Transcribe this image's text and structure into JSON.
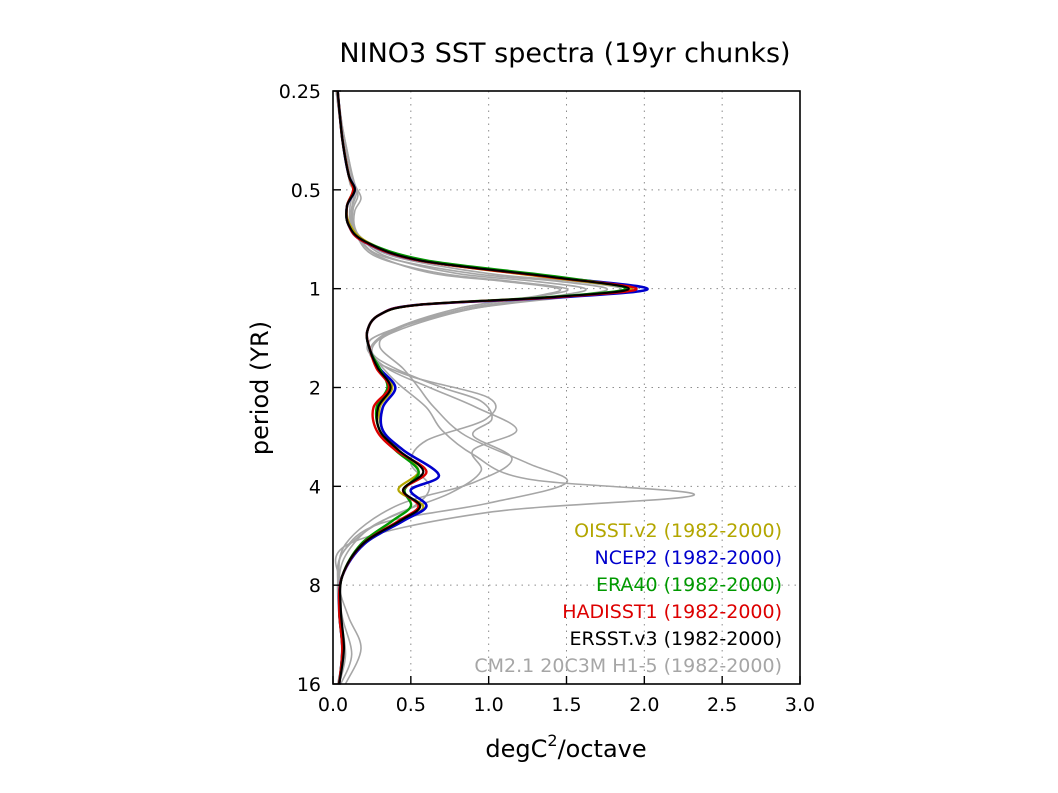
{
  "chart_data": {
    "type": "line",
    "title": "NINO3 SST spectra (19yr chunks)",
    "xlabel": {
      "base": "degC",
      "sup": "2",
      "rest": "/octave"
    },
    "ylabel": "period (YR)",
    "xlim": [
      0.0,
      3.0
    ],
    "ylim": [
      0.25,
      16
    ],
    "y_scale": "log2",
    "y_reversed": true,
    "grid": true,
    "legend_placement": "bottom-right",
    "x_ticks": [
      "0.0",
      "0.5",
      "1.0",
      "1.5",
      "2.0",
      "2.5",
      "3.0"
    ],
    "x_tick_values": [
      0.0,
      0.5,
      1.0,
      1.5,
      2.0,
      2.5,
      3.0
    ],
    "y_ticks": [
      "0.25",
      "0.5",
      "1",
      "2",
      "4",
      "8",
      "16"
    ],
    "y_tick_values": [
      0.25,
      0.5,
      1,
      2,
      4,
      8,
      16
    ],
    "series": [
      {
        "name": "CM2.1 20C3M H1-5 (1982-2000)",
        "color": "#a6a6a6",
        "width": 1.6,
        "x": [
          0.03,
          0.05,
          0.08,
          0.11,
          0.14,
          0.12,
          0.12,
          0.16,
          0.3,
          0.65,
          1.1,
          1.45,
          1.32,
          0.8,
          0.38,
          0.25,
          0.4,
          0.7,
          0.95,
          1.02,
          0.9,
          1.15,
          0.9,
          0.4,
          0.08,
          0.04,
          0.06,
          0.12,
          0.05
        ],
        "y": [
          0.25,
          0.32,
          0.4,
          0.48,
          0.5,
          0.57,
          0.63,
          0.7,
          0.8,
          0.9,
          0.95,
          1.0,
          1.05,
          1.15,
          1.35,
          1.55,
          1.75,
          2.0,
          2.2,
          2.5,
          2.8,
          3.3,
          3.9,
          4.6,
          6.0,
          8.0,
          10.0,
          13.0,
          16.0
        ]
      },
      {
        "name": "CM2.1 20C3M H1-5 (1982-2000)",
        "color": "#a6a6a6",
        "width": 1.6,
        "x": [
          0.03,
          0.06,
          0.1,
          0.13,
          0.16,
          0.13,
          0.13,
          0.18,
          0.35,
          0.8,
          1.3,
          1.62,
          1.45,
          0.85,
          0.35,
          0.22,
          0.35,
          0.62,
          0.92,
          1.18,
          0.9,
          0.95,
          0.75,
          0.35,
          0.07,
          0.03,
          0.05,
          0.08,
          0.04
        ],
        "y": [
          0.25,
          0.32,
          0.4,
          0.48,
          0.52,
          0.57,
          0.64,
          0.7,
          0.8,
          0.9,
          0.95,
          1.0,
          1.05,
          1.15,
          1.35,
          1.5,
          1.75,
          2.0,
          2.3,
          2.7,
          3.1,
          3.6,
          4.2,
          5.0,
          6.3,
          8.0,
          10.0,
          13.0,
          16.0
        ]
      },
      {
        "name": "CM2.1 20C3M H1-5 (1982-2000)",
        "color": "#a6a6a6",
        "width": 1.6,
        "x": [
          0.02,
          0.05,
          0.09,
          0.12,
          0.15,
          0.12,
          0.12,
          0.17,
          0.33,
          0.9,
          1.45,
          1.76,
          1.55,
          0.9,
          0.4,
          0.3,
          0.45,
          0.55,
          0.65,
          0.85,
          1.25,
          1.5,
          1.0,
          0.3,
          0.06,
          0.03,
          0.04,
          0.06,
          0.03
        ],
        "y": [
          0.25,
          0.32,
          0.4,
          0.48,
          0.51,
          0.57,
          0.63,
          0.7,
          0.8,
          0.9,
          0.95,
          1.0,
          1.05,
          1.15,
          1.35,
          1.5,
          1.75,
          2.0,
          2.3,
          2.8,
          3.4,
          3.9,
          4.5,
          5.2,
          6.4,
          8.0,
          10.0,
          13.0,
          16.0
        ]
      },
      {
        "name": "CM2.1 20C3M H1-5 (1982-2000)",
        "color": "#a6a6a6",
        "width": 1.6,
        "x": [
          0.03,
          0.06,
          0.1,
          0.14,
          0.18,
          0.14,
          0.14,
          0.2,
          0.4,
          1.0,
          1.55,
          1.85,
          1.6,
          0.9,
          0.35,
          0.22,
          0.3,
          0.42,
          0.6,
          0.7,
          0.9,
          1.25,
          2.32,
          1.0,
          0.1,
          0.05,
          0.05,
          0.07,
          0.04
        ],
        "y": [
          0.25,
          0.32,
          0.4,
          0.48,
          0.53,
          0.58,
          0.65,
          0.71,
          0.8,
          0.9,
          0.95,
          1.0,
          1.05,
          1.15,
          1.35,
          1.5,
          1.7,
          1.95,
          2.3,
          2.7,
          3.2,
          3.8,
          4.25,
          4.8,
          6.0,
          8.0,
          10.0,
          13.0,
          16.0
        ]
      },
      {
        "name": "CM2.1 20C3M H1-5 (1982-2000)",
        "color": "#a6a6a6",
        "width": 1.6,
        "x": [
          0.02,
          0.05,
          0.08,
          0.11,
          0.13,
          0.11,
          0.11,
          0.15,
          0.28,
          0.7,
          1.15,
          1.5,
          1.35,
          0.8,
          0.36,
          0.24,
          0.5,
          1.0,
          0.98,
          0.6,
          0.5,
          0.62,
          0.52,
          0.25,
          0.08,
          0.04,
          0.1,
          0.18,
          0.08
        ],
        "y": [
          0.25,
          0.32,
          0.4,
          0.47,
          0.5,
          0.56,
          0.62,
          0.69,
          0.8,
          0.9,
          0.95,
          1.0,
          1.05,
          1.15,
          1.35,
          1.6,
          1.85,
          2.15,
          2.5,
          2.9,
          3.4,
          4.0,
          4.6,
          5.3,
          6.5,
          8.0,
          10.0,
          12.5,
          16.0
        ]
      },
      {
        "name": "OISST.v2 (1982-2000)",
        "color": "#b3a600",
        "width": 2.2,
        "x": [
          0.03,
          0.06,
          0.1,
          0.14,
          0.09,
          0.11,
          0.22,
          0.55,
          1.35,
          1.92,
          1.45,
          0.55,
          0.3,
          0.22,
          0.24,
          0.3,
          0.38,
          0.3,
          0.32,
          0.42,
          0.55,
          0.42,
          0.58,
          0.45,
          0.2,
          0.06,
          0.04,
          0.06,
          0.04
        ],
        "y": [
          0.25,
          0.35,
          0.45,
          0.5,
          0.56,
          0.64,
          0.72,
          0.82,
          0.92,
          1.0,
          1.06,
          1.12,
          1.2,
          1.35,
          1.55,
          1.75,
          2.0,
          2.3,
          2.7,
          3.1,
          3.6,
          4.1,
          4.6,
          5.1,
          6.0,
          7.5,
          9.5,
          12.5,
          16.0
        ]
      },
      {
        "name": "NCEP2 (1982-2000)",
        "color": "#0000cc",
        "width": 2.6,
        "x": [
          0.03,
          0.06,
          0.1,
          0.14,
          0.09,
          0.1,
          0.2,
          0.55,
          1.4,
          2.02,
          1.5,
          0.55,
          0.3,
          0.22,
          0.24,
          0.3,
          0.4,
          0.32,
          0.32,
          0.45,
          0.68,
          0.5,
          0.6,
          0.45,
          0.2,
          0.06,
          0.04,
          0.06,
          0.04
        ],
        "y": [
          0.25,
          0.35,
          0.45,
          0.5,
          0.56,
          0.64,
          0.72,
          0.82,
          0.92,
          1.0,
          1.06,
          1.12,
          1.2,
          1.35,
          1.55,
          1.75,
          2.0,
          2.3,
          2.7,
          3.1,
          3.7,
          4.1,
          4.6,
          5.1,
          6.0,
          7.5,
          9.5,
          12.5,
          16.0
        ]
      },
      {
        "name": "ERA40 (1982-2000)",
        "color": "#009900",
        "width": 2.4,
        "x": [
          0.03,
          0.06,
          0.1,
          0.13,
          0.09,
          0.1,
          0.21,
          0.6,
          1.45,
          1.88,
          1.4,
          0.55,
          0.3,
          0.22,
          0.24,
          0.3,
          0.35,
          0.28,
          0.3,
          0.4,
          0.55,
          0.46,
          0.5,
          0.38,
          0.18,
          0.06,
          0.04,
          0.06,
          0.04
        ],
        "y": [
          0.25,
          0.35,
          0.45,
          0.5,
          0.56,
          0.64,
          0.72,
          0.82,
          0.92,
          1.0,
          1.06,
          1.12,
          1.2,
          1.35,
          1.55,
          1.75,
          2.0,
          2.3,
          2.7,
          3.1,
          3.6,
          4.1,
          4.6,
          5.1,
          6.0,
          7.5,
          9.5,
          12.5,
          16.0
        ]
      },
      {
        "name": "HADISST1 (1982-2000)",
        "color": "#dd0000",
        "width": 2.4,
        "x": [
          0.03,
          0.06,
          0.1,
          0.13,
          0.09,
          0.1,
          0.2,
          0.55,
          1.38,
          1.95,
          1.45,
          0.55,
          0.3,
          0.22,
          0.24,
          0.28,
          0.36,
          0.26,
          0.28,
          0.4,
          0.6,
          0.45,
          0.55,
          0.42,
          0.19,
          0.06,
          0.04,
          0.06,
          0.04
        ],
        "y": [
          0.25,
          0.35,
          0.45,
          0.5,
          0.56,
          0.64,
          0.72,
          0.82,
          0.92,
          1.0,
          1.06,
          1.12,
          1.2,
          1.35,
          1.55,
          1.75,
          2.0,
          2.3,
          2.7,
          3.1,
          3.6,
          4.1,
          4.6,
          5.1,
          6.0,
          7.5,
          9.5,
          12.5,
          16.0
        ]
      },
      {
        "name": "ERSST.v3 (1982-2000)",
        "color": "#000000",
        "width": 2.2,
        "x": [
          0.03,
          0.06,
          0.1,
          0.14,
          0.09,
          0.1,
          0.21,
          0.56,
          1.4,
          1.9,
          1.42,
          0.55,
          0.3,
          0.22,
          0.24,
          0.29,
          0.37,
          0.29,
          0.3,
          0.42,
          0.58,
          0.45,
          0.56,
          0.43,
          0.19,
          0.06,
          0.05,
          0.07,
          0.04
        ],
        "y": [
          0.25,
          0.35,
          0.45,
          0.5,
          0.56,
          0.64,
          0.72,
          0.82,
          0.92,
          1.0,
          1.06,
          1.12,
          1.2,
          1.35,
          1.55,
          1.75,
          2.0,
          2.3,
          2.7,
          3.1,
          3.6,
          4.1,
          4.6,
          5.1,
          6.0,
          7.5,
          9.5,
          12.5,
          16.0
        ]
      }
    ],
    "legend": [
      {
        "label": "OISST.v2 (1982-2000)",
        "color": "#b3a600"
      },
      {
        "label": "NCEP2 (1982-2000)",
        "color": "#0000cc"
      },
      {
        "label": "ERA40 (1982-2000)",
        "color": "#009900"
      },
      {
        "label": "HADISST1 (1982-2000)",
        "color": "#dd0000"
      },
      {
        "label": "ERSST.v3 (1982-2000)",
        "color": "#000000"
      },
      {
        "label": "CM2.1 20C3M H1-5 (1982-2000)",
        "color": "#a6a6a6"
      }
    ]
  }
}
